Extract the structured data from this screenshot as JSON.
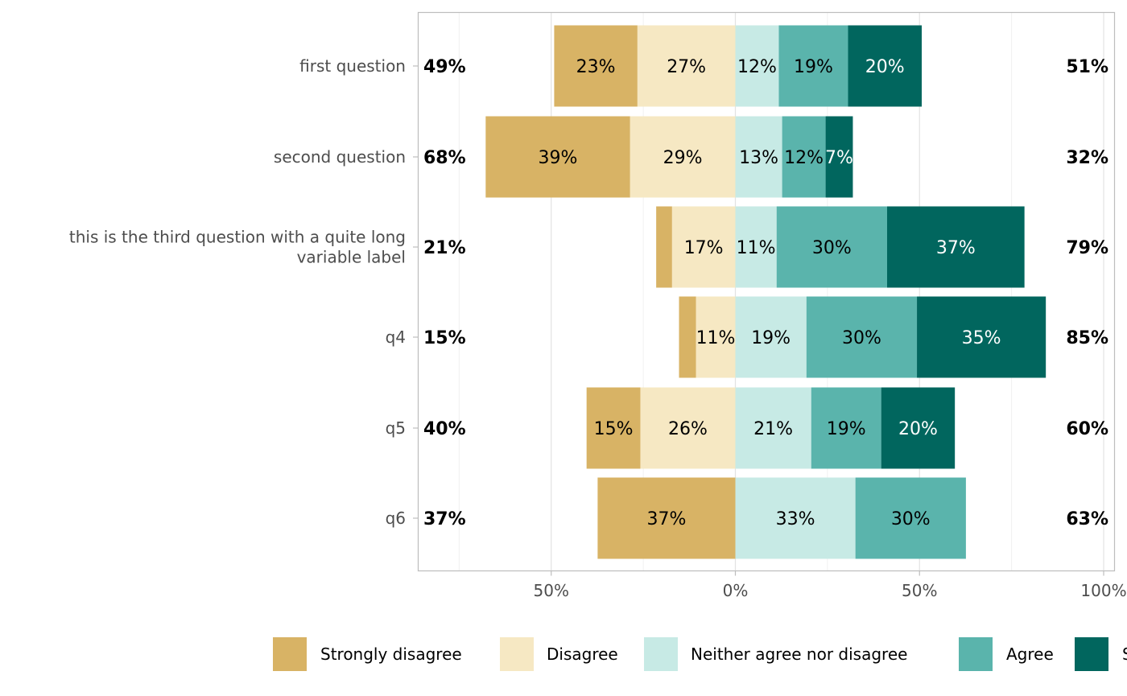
{
  "chart_data": {
    "type": "bar",
    "orientation": "horizontal",
    "stacked": "diverging",
    "title": "",
    "xlabel": "",
    "ylabel": "",
    "xlim": [
      -0.85,
      1.04
    ],
    "x_ticks": [
      -0.5,
      0,
      0.5,
      1.0
    ],
    "x_tick_labels": [
      "50%",
      "0%",
      "50%",
      "100%"
    ],
    "x_minor_ticks": [
      -0.75,
      -0.25,
      0.25,
      0.75
    ],
    "grid": true,
    "legend_position": "bottom",
    "categories": [
      "first question",
      "second question",
      "this is the third question with a quite long variable label",
      "q4",
      "q5",
      "q6"
    ],
    "category_lines": [
      [
        "first question"
      ],
      [
        "second question"
      ],
      [
        "this is the third question with a quite long",
        "variable label"
      ],
      [
        "q4"
      ],
      [
        "q5"
      ],
      [
        "q6"
      ]
    ],
    "series": [
      {
        "name": "Strongly disagree",
        "color": "#d8b365",
        "text_color": "#000000",
        "side": "negative",
        "values": [
          0.226,
          0.392,
          0.043,
          0.046,
          0.146,
          0.374
        ],
        "labels": [
          "23%",
          "39%",
          "",
          "",
          "15%",
          "37%"
        ]
      },
      {
        "name": "Disagree",
        "color": "#f6e8c3",
        "text_color": "#000000",
        "side": "negative",
        "values": [
          0.266,
          0.286,
          0.172,
          0.107,
          0.258,
          0.0
        ],
        "labels": [
          "27%",
          "29%",
          "17%",
          "11%",
          "26%",
          ""
        ]
      },
      {
        "name": "Neither agree nor disagree",
        "color": "#c7eae5",
        "text_color": "#000000",
        "side": "positive",
        "values": [
          0.118,
          0.127,
          0.112,
          0.193,
          0.206,
          0.326
        ],
        "labels": [
          "12%",
          "13%",
          "11%",
          "19%",
          "21%",
          "33%"
        ]
      },
      {
        "name": "Agree",
        "color": "#5ab4ac",
        "text_color": "#000000",
        "side": "positive",
        "values": [
          0.188,
          0.118,
          0.3,
          0.3,
          0.19,
          0.3
        ],
        "labels": [
          "19%",
          "12%",
          "30%",
          "30%",
          "19%",
          "30%"
        ]
      },
      {
        "name": "Strongly agree",
        "color": "#01665e",
        "text_color": "#ffffff",
        "side": "positive",
        "values": [
          0.2,
          0.074,
          0.373,
          0.35,
          0.2,
          0.0
        ],
        "labels": [
          "20%",
          "7%",
          "37%",
          "35%",
          "20%",
          ""
        ]
      }
    ],
    "left_totals": [
      "49%",
      "68%",
      "21%",
      "15%",
      "40%",
      "37%"
    ],
    "right_totals": [
      "51%",
      "32%",
      "79%",
      "85%",
      "60%",
      "63%"
    ],
    "legend": [
      "Strongly disagree",
      "Disagree",
      "Neither agree nor disagree",
      "Agree",
      "Strongly agree"
    ],
    "legend_visible_text": [
      "Strongly disagree",
      "Disagree",
      "Neither agree nor disagree",
      "Agree",
      "S"
    ]
  },
  "colors": {
    "panel_border": "#bdbdbd",
    "grid_major": "#e3e3e3",
    "grid_minor": "#f0f0f0",
    "axis_text": "#4d4d4d"
  }
}
